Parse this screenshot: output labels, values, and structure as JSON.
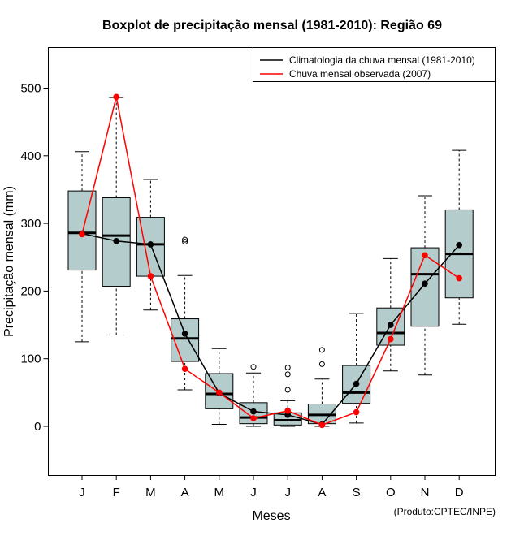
{
  "chart_data": {
    "type": "boxplot",
    "title": "Boxplot de precipitação mensal (1981-2010): Região 69",
    "xlabel": "Meses",
    "ylabel": "Precipitação mensal (mm)",
    "ylim": [
      -70,
      555
    ],
    "yticks": [
      0,
      100,
      200,
      300,
      400,
      500
    ],
    "credit": "(Produto:CPTEC/INPE)",
    "categories": [
      "J",
      "F",
      "M",
      "A",
      "M",
      "J",
      "J",
      "A",
      "S",
      "O",
      "N",
      "D"
    ],
    "boxes": [
      {
        "whisker_low": 125,
        "q1": 231,
        "median": 286,
        "q3": 348,
        "whisker_high": 406,
        "outliers": []
      },
      {
        "whisker_low": 135,
        "q1": 207,
        "median": 282,
        "q3": 338,
        "whisker_high": 486,
        "outliers": []
      },
      {
        "whisker_low": 172,
        "q1": 222,
        "median": 269,
        "q3": 309,
        "whisker_high": 365,
        "outliers": []
      },
      {
        "whisker_low": 54,
        "q1": 96,
        "median": 130,
        "q3": 159,
        "whisker_high": 223,
        "outliers": [
          273,
          276
        ]
      },
      {
        "whisker_low": 3,
        "q1": 26,
        "median": 48,
        "q3": 78,
        "whisker_high": 115,
        "outliers": []
      },
      {
        "whisker_low": 0,
        "q1": 4,
        "median": 13,
        "q3": 35,
        "whisker_high": 79,
        "outliers": [
          88
        ]
      },
      {
        "whisker_low": 0,
        "q1": 2,
        "median": 9,
        "q3": 20,
        "whisker_high": 38,
        "outliers": [
          54,
          77,
          87
        ]
      },
      {
        "whisker_low": 0,
        "q1": 4,
        "median": 17,
        "q3": 33,
        "whisker_high": 70,
        "outliers": [
          92,
          113
        ]
      },
      {
        "whisker_low": 5,
        "q1": 34,
        "median": 50,
        "q3": 90,
        "whisker_high": 167,
        "outliers": []
      },
      {
        "whisker_low": 82,
        "q1": 120,
        "median": 138,
        "q3": 175,
        "whisker_high": 248,
        "outliers": []
      },
      {
        "whisker_low": 76,
        "q1": 148,
        "median": 225,
        "q3": 264,
        "whisker_high": 341,
        "outliers": []
      },
      {
        "whisker_low": 151,
        "q1": 190,
        "median": 255,
        "q3": 320,
        "whisker_high": 408,
        "outliers": []
      }
    ],
    "series": [
      {
        "name": "Climatologia da chuva mensal (1981-2010)",
        "color": "#000000",
        "values": [
          285,
          274,
          269,
          137,
          49,
          22,
          17,
          3,
          63,
          150,
          211,
          268
        ]
      },
      {
        "name": "Chuva mensal observada (2007)",
        "color": "#ff0000",
        "values": [
          284,
          487,
          222,
          85,
          50,
          12,
          23,
          2,
          21,
          129,
          253,
          219
        ]
      }
    ],
    "legend_position": "top-right",
    "box_fill": "#b5cccc"
  }
}
